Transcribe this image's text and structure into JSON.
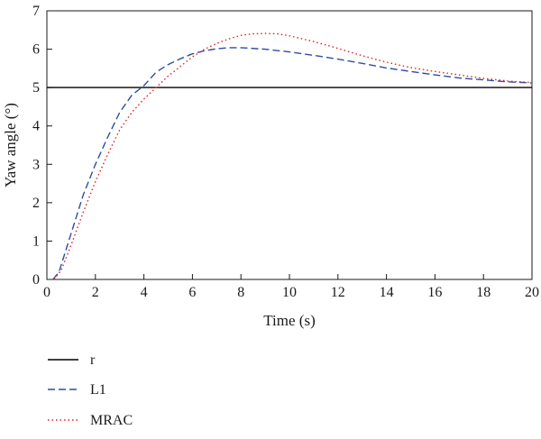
{
  "chart_data": {
    "type": "line",
    "title": "",
    "xlabel": "Time (s)",
    "ylabel": "Yaw angle (°)",
    "xlim": [
      0,
      20
    ],
    "ylim": [
      0,
      7
    ],
    "x_ticks": [
      0,
      2,
      4,
      6,
      8,
      10,
      12,
      14,
      16,
      18,
      20
    ],
    "y_ticks": [
      0,
      1,
      2,
      3,
      4,
      5,
      6,
      7
    ],
    "grid": false,
    "legend_position": "below",
    "series": [
      {
        "name": "r",
        "style": "solid",
        "color": "#000000",
        "points": [
          [
            0,
            5
          ],
          [
            20,
            5
          ]
        ]
      },
      {
        "name": "L1",
        "style": "dashed",
        "color": "#2c4fa0",
        "points": [
          [
            0.25,
            0
          ],
          [
            0.5,
            0.2
          ],
          [
            1,
            1.2
          ],
          [
            1.5,
            2.2
          ],
          [
            2,
            3.0
          ],
          [
            2.5,
            3.7
          ],
          [
            3,
            4.35
          ],
          [
            3.5,
            4.8
          ],
          [
            4,
            5.05
          ],
          [
            4.5,
            5.4
          ],
          [
            5,
            5.6
          ],
          [
            5.5,
            5.75
          ],
          [
            6,
            5.88
          ],
          [
            6.5,
            5.96
          ],
          [
            7,
            6.01
          ],
          [
            7.5,
            6.04
          ],
          [
            8,
            6.04
          ],
          [
            9,
            6.0
          ],
          [
            10,
            5.93
          ],
          [
            11,
            5.84
          ],
          [
            12,
            5.74
          ],
          [
            13,
            5.63
          ],
          [
            14,
            5.51
          ],
          [
            15,
            5.42
          ],
          [
            16,
            5.33
          ],
          [
            17,
            5.25
          ],
          [
            18,
            5.2
          ],
          [
            19,
            5.15
          ],
          [
            20,
            5.12
          ]
        ]
      },
      {
        "name": "MRAC",
        "style": "dotted",
        "color": "#e02020",
        "points": [
          [
            0.3,
            0
          ],
          [
            0.6,
            0.25
          ],
          [
            1,
            0.9
          ],
          [
            1.5,
            1.75
          ],
          [
            2,
            2.55
          ],
          [
            2.5,
            3.25
          ],
          [
            3,
            3.9
          ],
          [
            3.5,
            4.35
          ],
          [
            4,
            4.7
          ],
          [
            4.5,
            5.0
          ],
          [
            5,
            5.3
          ],
          [
            5.5,
            5.55
          ],
          [
            6,
            5.8
          ],
          [
            6.5,
            6.0
          ],
          [
            7,
            6.15
          ],
          [
            7.5,
            6.27
          ],
          [
            8,
            6.36
          ],
          [
            8.5,
            6.4
          ],
          [
            9,
            6.41
          ],
          [
            9.5,
            6.4
          ],
          [
            10,
            6.35
          ],
          [
            11,
            6.2
          ],
          [
            12,
            6.02
          ],
          [
            13,
            5.83
          ],
          [
            14,
            5.66
          ],
          [
            15,
            5.52
          ],
          [
            16,
            5.42
          ],
          [
            17,
            5.33
          ],
          [
            18,
            5.24
          ],
          [
            19,
            5.17
          ],
          [
            20,
            5.13
          ]
        ]
      }
    ]
  }
}
